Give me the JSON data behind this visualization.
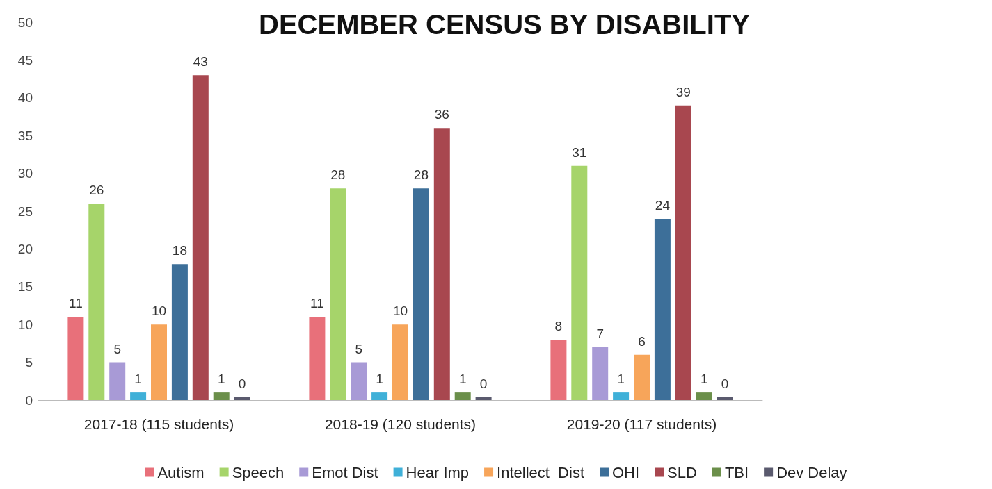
{
  "chart_data": {
    "type": "bar",
    "title": "DECEMBER CENSUS BY DISABILITY",
    "categories": [
      "2017-18 (115 students)",
      "2018-19 (120 students)",
      "2019-20 (117 students)"
    ],
    "series": [
      {
        "name": "Autism",
        "color": "#e8707a",
        "values": [
          11,
          11,
          8
        ]
      },
      {
        "name": "Speech",
        "color": "#a6d46a",
        "values": [
          26,
          28,
          31
        ]
      },
      {
        "name": "Emot Dist",
        "color": "#a89ad6",
        "values": [
          5,
          5,
          7
        ]
      },
      {
        "name": "Hear Imp",
        "color": "#3fb0d8",
        "values": [
          1,
          1,
          1
        ]
      },
      {
        "name": "Intellect  Dist",
        "color": "#f7a55a",
        "values": [
          10,
          10,
          6
        ]
      },
      {
        "name": "OHI",
        "color": "#3d6f99",
        "values": [
          18,
          28,
          24
        ]
      },
      {
        "name": "SLD",
        "color": "#a8474f",
        "values": [
          43,
          36,
          39
        ]
      },
      {
        "name": "TBI",
        "color": "#6b8f4a",
        "values": [
          1,
          1,
          1
        ]
      },
      {
        "name": "Dev Delay",
        "color": "#5a5a6e",
        "values": [
          0,
          0,
          0
        ]
      }
    ],
    "ylim": [
      0,
      50
    ],
    "yticks": [
      0,
      5,
      10,
      15,
      20,
      25,
      30,
      35,
      40,
      45,
      50
    ],
    "grid": false,
    "legend": "bottom",
    "data_labels": true
  }
}
